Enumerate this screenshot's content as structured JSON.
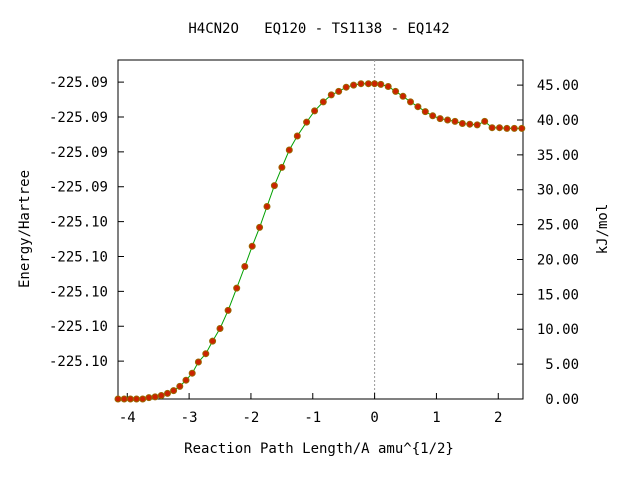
{
  "chart_data": {
    "type": "line",
    "title": "H4CN2O   EQ120 - TS1138 - EQ142",
    "xlabel": "Reaction Path Length/A amu^{1/2}",
    "ylabel_left": "Energy/Hartree",
    "ylabel_right": "kJ/mol",
    "xlim": [
      -4.15,
      2.4
    ],
    "ylim_kj": [
      0,
      48.6
    ],
    "x_ticks": [
      -4,
      -3,
      -2,
      -1,
      0,
      1,
      2
    ],
    "left_tick_labels": [
      "-225.10",
      "-225.10",
      "-225.10",
      "-225.10",
      "-225.10",
      "-225.09",
      "-225.09",
      "-225.09",
      "-225.09"
    ],
    "right_ticks": [
      0,
      5,
      10,
      15,
      20,
      25,
      30,
      35,
      40,
      45
    ],
    "right_tick_labels": [
      "0.00",
      "5.00",
      "10.00",
      "15.00",
      "20.00",
      "25.00",
      "30.00",
      "35.00",
      "40.00",
      "45.00"
    ],
    "ts_marker_x": 0,
    "line_color": "#00a000",
    "marker_color": "#cc2200",
    "marker_edge_color": "#996600",
    "series": [
      {
        "x": [
          -4.15,
          -4.05,
          -3.95,
          -3.85,
          -3.75,
          -3.65,
          -3.55,
          -3.45,
          -3.35,
          -3.25,
          -3.15,
          -3.05,
          -2.95,
          -2.85,
          -2.73,
          -2.62,
          -2.5,
          -2.37,
          -2.23,
          -2.1,
          -1.98,
          -1.86,
          -1.74,
          -1.62,
          -1.5,
          -1.38,
          -1.25,
          -1.1,
          -0.97,
          -0.83,
          -0.7,
          -0.58,
          -0.46,
          -0.34,
          -0.22,
          -0.1,
          0.0,
          0.1,
          0.22,
          0.34,
          0.46,
          0.58,
          0.7,
          0.82,
          0.94,
          1.06,
          1.18,
          1.3,
          1.42,
          1.54,
          1.66,
          1.78,
          1.9,
          2.02,
          2.14,
          2.26,
          2.38
        ],
        "y": [
          0.0,
          0.0,
          0.0,
          0.0,
          0.0,
          0.2,
          0.3,
          0.5,
          0.8,
          1.2,
          1.8,
          2.7,
          3.7,
          5.3,
          6.5,
          8.3,
          10.1,
          12.7,
          15.9,
          19.0,
          21.9,
          24.6,
          27.6,
          30.6,
          33.2,
          35.7,
          37.7,
          39.7,
          41.3,
          42.6,
          43.6,
          44.1,
          44.7,
          45.0,
          45.2,
          45.2,
          45.2,
          45.1,
          44.8,
          44.1,
          43.4,
          42.6,
          41.9,
          41.2,
          40.6,
          40.2,
          40.0,
          39.8,
          39.5,
          39.4,
          39.3,
          39.8,
          38.9,
          38.9,
          38.8,
          38.8,
          38.8
        ]
      }
    ]
  }
}
